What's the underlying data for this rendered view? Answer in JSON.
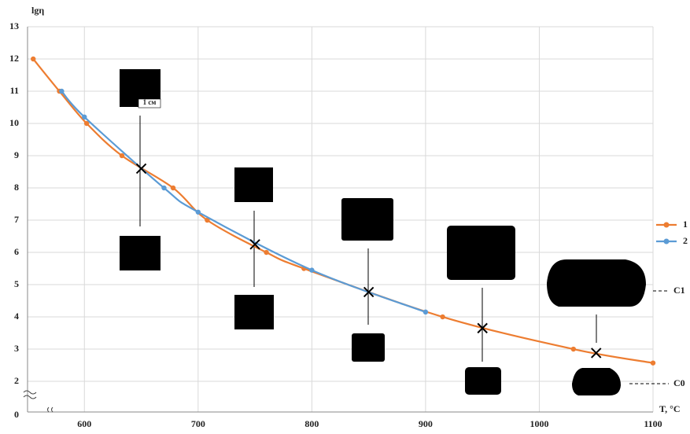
{
  "chart_data": {
    "type": "line",
    "y_label": "lgη",
    "x_label": "T, °C",
    "origin_label": "0",
    "scale_label": "1 см",
    "level_labels": [
      "C1",
      "C0"
    ],
    "xlim": [
      550,
      1100
    ],
    "xticks": [
      600,
      700,
      800,
      900,
      1000,
      1100
    ],
    "ylim": [
      1.05,
      13
    ],
    "yticks": [
      2,
      3,
      4,
      5,
      6,
      7,
      8,
      9,
      10,
      11,
      12,
      13
    ],
    "grid": true,
    "legend": "right",
    "series": [
      {
        "name": "1",
        "color": "#ed7d31",
        "x": [
          555,
          578,
          602,
          633,
          678,
          708,
          760,
          793,
          915,
          1030,
          1100
        ],
        "values": [
          12,
          11,
          10,
          9,
          8,
          7,
          6,
          5.5,
          4,
          3,
          2.57
        ]
      },
      {
        "name": "2",
        "color": "#5b9bd5",
        "x": [
          580,
          600,
          670,
          700,
          800,
          900
        ],
        "values": [
          11,
          10.2,
          8,
          7.25,
          5.45,
          4.15
        ]
      }
    ],
    "crosses": {
      "x": [
        650,
        750,
        850,
        950,
        1050
      ],
      "values": [
        8.6,
        6.25,
        4.77,
        3.65,
        2.88
      ]
    }
  }
}
